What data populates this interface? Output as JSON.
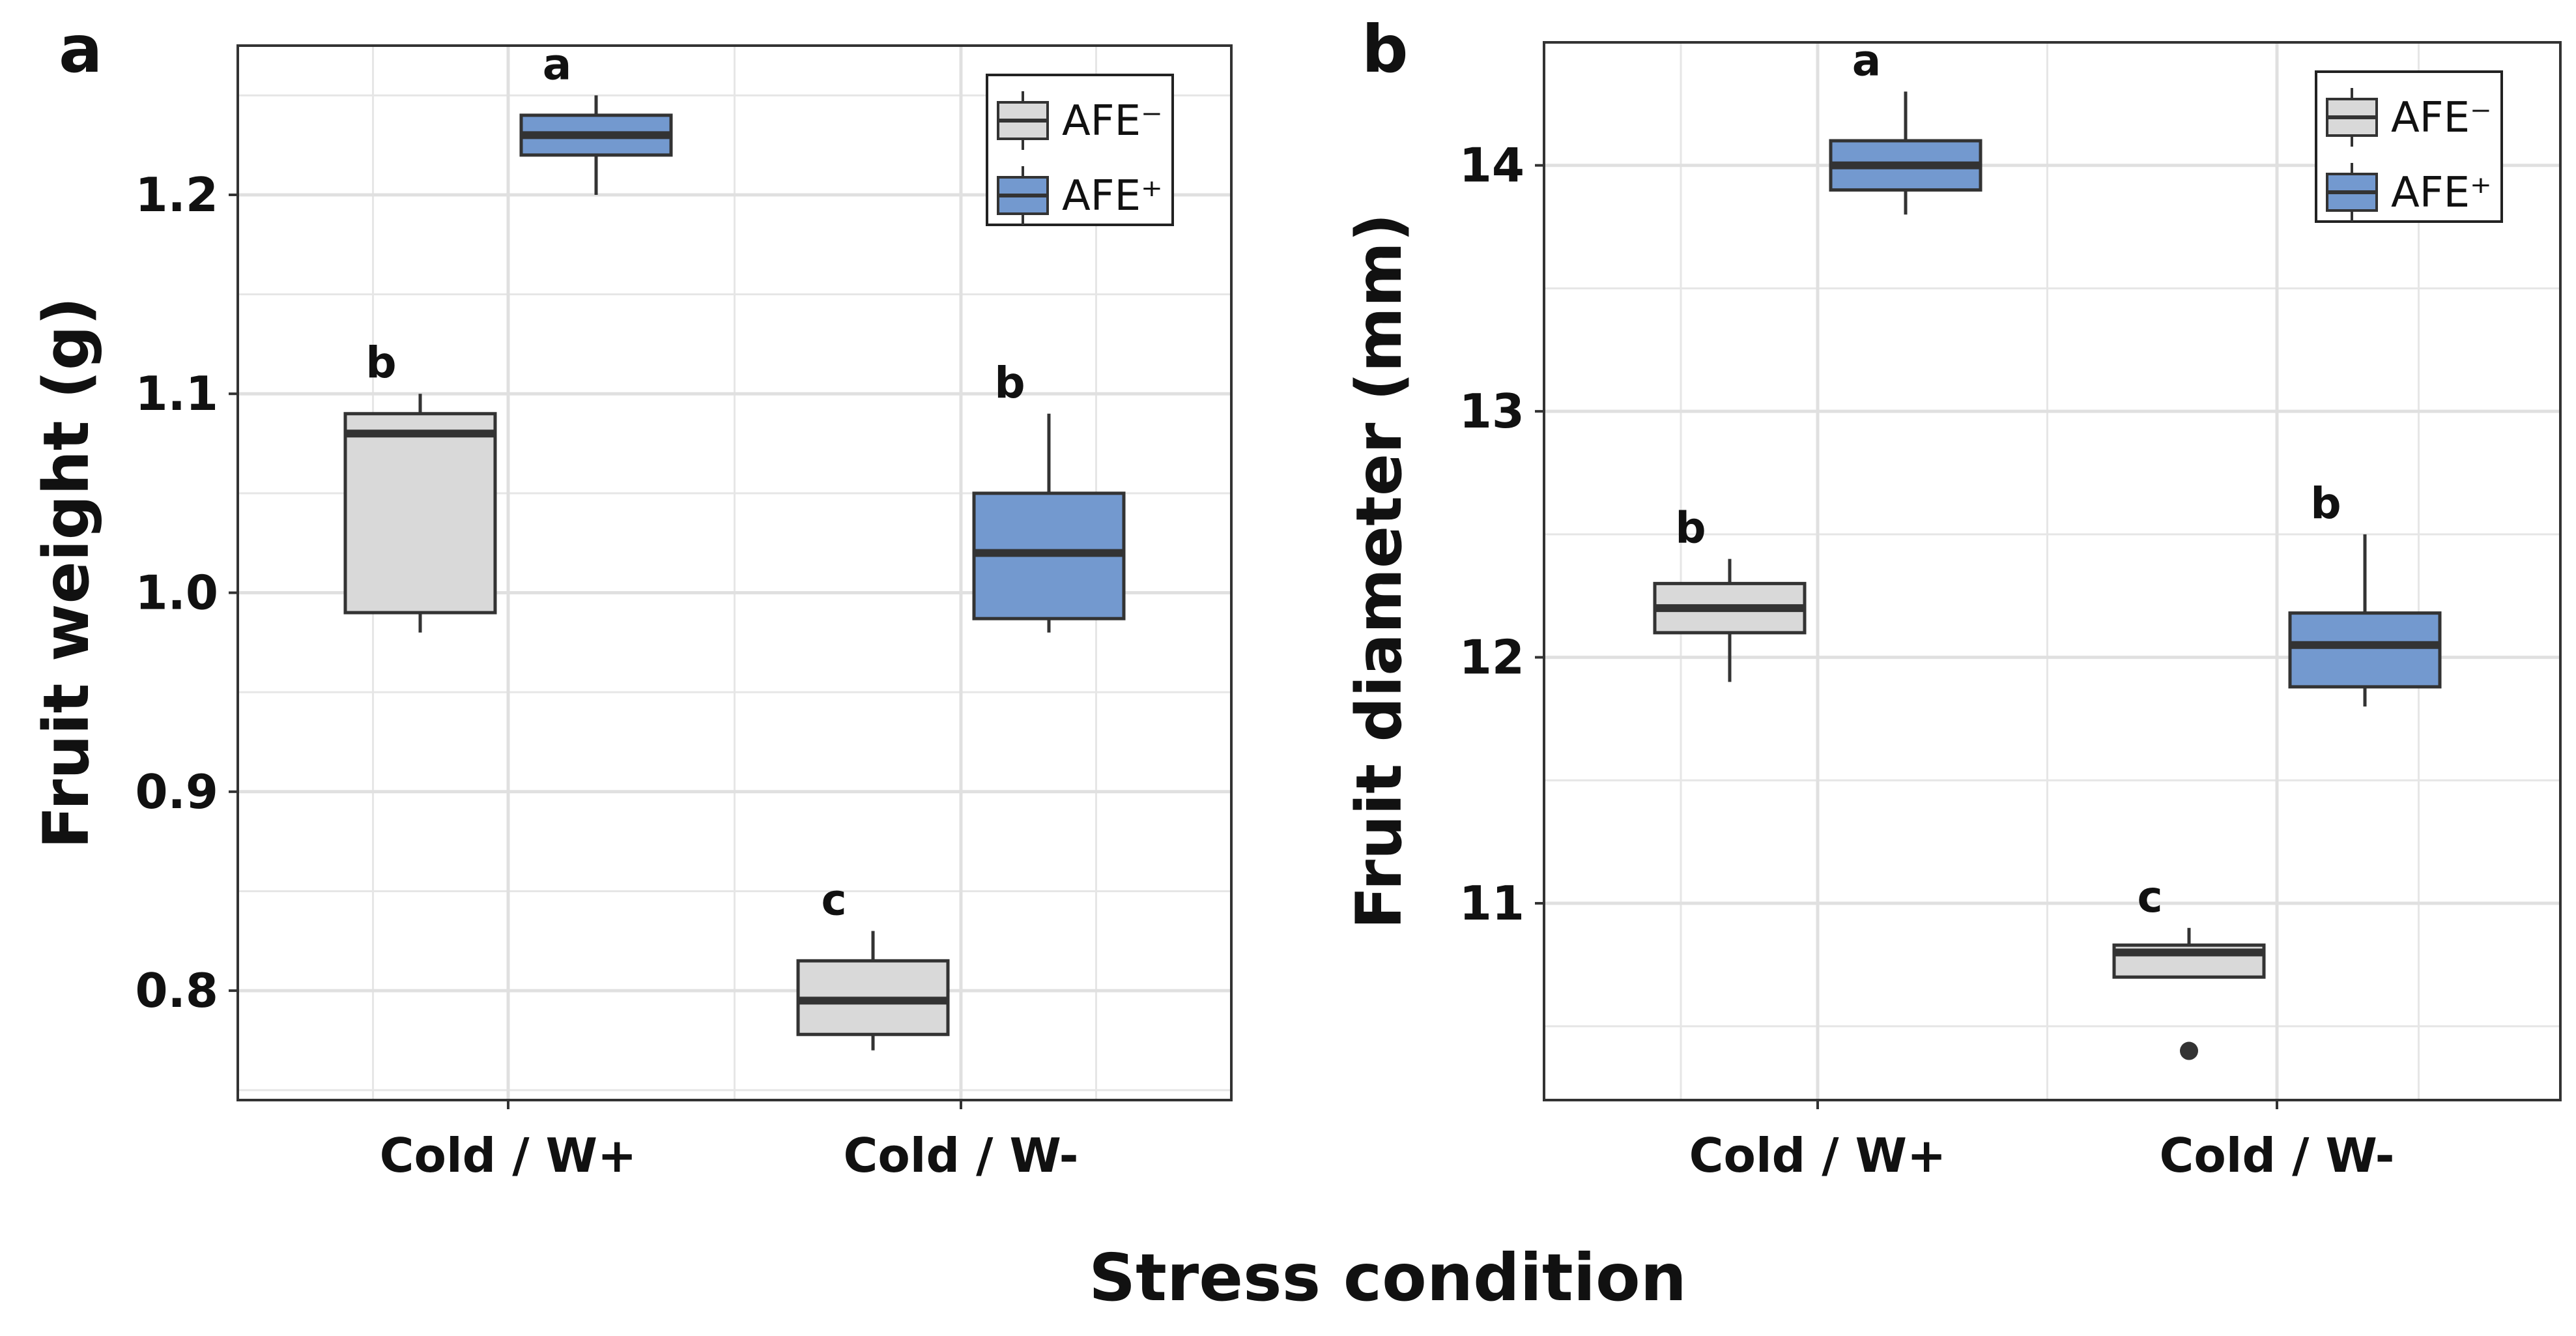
{
  "figure": {
    "shared_xlabel": "Stress condition"
  },
  "colors": {
    "afe_minus_fill": "#d9d9d9",
    "afe_plus_fill": "#7399cf",
    "box_stroke": "#333333",
    "grid": "#e6e6e6"
  },
  "chart_data": [
    {
      "panel": "a",
      "type": "boxplot",
      "ylabel": "Fruit weight (g)",
      "xlabel": "",
      "categories": [
        "Cold / W+",
        "Cold / W-"
      ],
      "ylim": [
        0.745,
        1.275
      ],
      "yticks": [
        0.8,
        0.9,
        1.0,
        1.1,
        1.2
      ],
      "ytick_labels": [
        "0.8",
        "0.9",
        "1.0",
        "1.1",
        "1.2"
      ],
      "grid": true,
      "legend": {
        "position": "top-right",
        "entries": [
          "AFE⁻",
          "AFE⁺"
        ]
      },
      "series": [
        {
          "name": "AFE⁻",
          "color": "#d9d9d9",
          "boxes": [
            {
              "category": "Cold / W+",
              "min": 0.98,
              "q1": 0.99,
              "median": 1.08,
              "q3": 1.09,
              "max": 1.1,
              "outliers": [],
              "label": "b"
            },
            {
              "category": "Cold / W-",
              "min": 0.77,
              "q1": 0.778,
              "median": 0.795,
              "q3": 0.815,
              "max": 0.83,
              "outliers": [],
              "label": "c"
            }
          ]
        },
        {
          "name": "AFE⁺",
          "color": "#7399cf",
          "boxes": [
            {
              "category": "Cold / W+",
              "min": 1.2,
              "q1": 1.22,
              "median": 1.23,
              "q3": 1.24,
              "max": 1.25,
              "outliers": [],
              "label": "a"
            },
            {
              "category": "Cold / W-",
              "min": 0.98,
              "q1": 0.987,
              "median": 1.02,
              "q3": 1.05,
              "max": 1.09,
              "outliers": [],
              "label": "b"
            }
          ]
        }
      ]
    },
    {
      "panel": "b",
      "type": "boxplot",
      "ylabel": "Fruit diameter (mm)",
      "xlabel": "",
      "categories": [
        "Cold / W+",
        "Cold / W-"
      ],
      "ylim": [
        10.2,
        14.5
      ],
      "yticks": [
        11,
        12,
        13,
        14
      ],
      "ytick_labels": [
        "11",
        "12",
        "13",
        "14"
      ],
      "grid": true,
      "legend": {
        "position": "top-right",
        "entries": [
          "AFE⁻",
          "AFE⁺"
        ]
      },
      "series": [
        {
          "name": "AFE⁻",
          "color": "#d9d9d9",
          "boxes": [
            {
              "category": "Cold / W+",
              "min": 11.9,
              "q1": 12.1,
              "median": 12.2,
              "q3": 12.3,
              "max": 12.4,
              "outliers": [],
              "label": "b"
            },
            {
              "category": "Cold / W-",
              "min": 10.7,
              "q1": 10.7,
              "median": 10.8,
              "q3": 10.83,
              "max": 10.9,
              "outliers": [
                10.4
              ],
              "label": "c"
            }
          ]
        },
        {
          "name": "AFE⁺",
          "color": "#7399cf",
          "boxes": [
            {
              "category": "Cold / W+",
              "min": 13.8,
              "q1": 13.9,
              "median": 14.0,
              "q3": 14.1,
              "max": 14.3,
              "outliers": [],
              "label": "a"
            },
            {
              "category": "Cold / W-",
              "min": 11.8,
              "q1": 11.88,
              "median": 12.05,
              "q3": 12.18,
              "max": 12.5,
              "outliers": [],
              "label": "b"
            }
          ]
        }
      ]
    }
  ]
}
